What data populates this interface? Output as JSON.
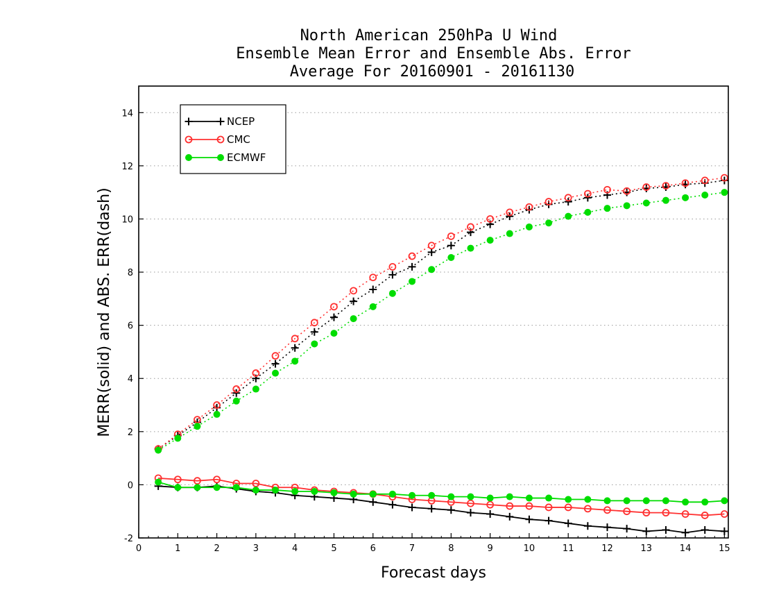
{
  "chart_data": {
    "type": "line",
    "title": [
      "North American 250hPa U Wind",
      "Ensemble Mean Error and Ensemble Abs. Error",
      "Average For 20160901 - 20161130"
    ],
    "xlabel": "Forecast days",
    "ylabel": "MERR(solid) and ABS. ERR(dash)",
    "xlim": [
      0,
      15.1
    ],
    "ylim": [
      -2,
      15
    ],
    "xticks": [
      "0",
      "1",
      "2",
      "3",
      "4",
      "5",
      "6",
      "7",
      "8",
      "9",
      "10",
      "11",
      "12",
      "13",
      "14",
      "15"
    ],
    "yticks": [
      "-2",
      "0",
      "2",
      "4",
      "6",
      "8",
      "10",
      "12",
      "14"
    ],
    "grid": "horizontal dotted",
    "legend_position": "top-left",
    "x": [
      0.5,
      1,
      1.5,
      2,
      2.5,
      3,
      3.5,
      4,
      4.5,
      5,
      5.5,
      6,
      6.5,
      7,
      7.5,
      8,
      8.5,
      9,
      9.5,
      10,
      10.5,
      11,
      11.5,
      12,
      12.5,
      13,
      13.5,
      14,
      14.5,
      15
    ],
    "series": [
      {
        "name": "NCEP",
        "color": "#000000",
        "marker": "plus",
        "merr": [
          -0.05,
          -0.1,
          -0.1,
          -0.05,
          -0.15,
          -0.25,
          -0.3,
          -0.4,
          -0.45,
          -0.5,
          -0.55,
          -0.65,
          -0.75,
          -0.85,
          -0.9,
          -0.95,
          -1.05,
          -1.1,
          -1.2,
          -1.3,
          -1.35,
          -1.45,
          -1.55,
          -1.6,
          -1.65,
          -1.75,
          -1.7,
          -1.8,
          -1.7,
          -1.75
        ],
        "abs_err": [
          1.35,
          1.85,
          2.35,
          2.9,
          3.45,
          4.0,
          4.55,
          5.15,
          5.75,
          6.3,
          6.9,
          7.35,
          7.9,
          8.2,
          8.75,
          9.0,
          9.5,
          9.8,
          10.1,
          10.35,
          10.55,
          10.65,
          10.8,
          10.9,
          11.0,
          11.15,
          11.2,
          11.3,
          11.35,
          11.45
        ]
      },
      {
        "name": "CMC",
        "color": "#ff3030",
        "marker": "open-circle",
        "merr": [
          0.25,
          0.2,
          0.15,
          0.2,
          0.05,
          0.05,
          -0.1,
          -0.1,
          -0.2,
          -0.25,
          -0.3,
          -0.35,
          -0.45,
          -0.55,
          -0.6,
          -0.65,
          -0.7,
          -0.75,
          -0.8,
          -0.8,
          -0.85,
          -0.85,
          -0.9,
          -0.95,
          -1.0,
          -1.05,
          -1.05,
          -1.1,
          -1.15,
          -1.1
        ],
        "abs_err": [
          1.35,
          1.9,
          2.45,
          3.0,
          3.6,
          4.2,
          4.85,
          5.5,
          6.1,
          6.7,
          7.3,
          7.8,
          8.2,
          8.6,
          9.0,
          9.35,
          9.7,
          10.0,
          10.25,
          10.45,
          10.65,
          10.8,
          10.95,
          11.1,
          11.05,
          11.2,
          11.25,
          11.35,
          11.45,
          11.55
        ]
      },
      {
        "name": "ECMWF",
        "color": "#00dd00",
        "marker": "filled-circle",
        "merr": [
          0.1,
          -0.1,
          -0.1,
          -0.1,
          -0.1,
          -0.2,
          -0.2,
          -0.25,
          -0.25,
          -0.3,
          -0.35,
          -0.35,
          -0.35,
          -0.4,
          -0.4,
          -0.45,
          -0.45,
          -0.5,
          -0.45,
          -0.5,
          -0.5,
          -0.55,
          -0.55,
          -0.6,
          -0.6,
          -0.6,
          -0.6,
          -0.65,
          -0.65,
          -0.6
        ],
        "abs_err": [
          1.3,
          1.75,
          2.2,
          2.65,
          3.15,
          3.6,
          4.2,
          4.65,
          5.3,
          5.7,
          6.25,
          6.7,
          7.2,
          7.65,
          8.1,
          8.55,
          8.9,
          9.2,
          9.45,
          9.7,
          9.85,
          10.1,
          10.25,
          10.4,
          10.5,
          10.6,
          10.7,
          10.8,
          10.9,
          11.0
        ]
      }
    ]
  }
}
